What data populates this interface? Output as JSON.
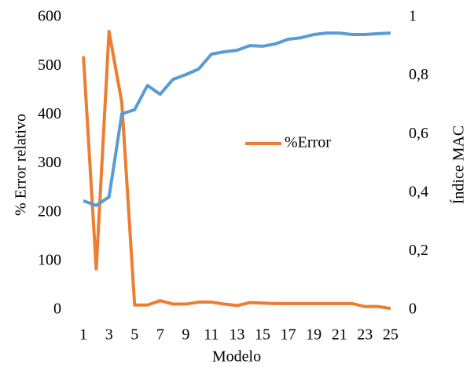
{
  "chart_data": {
    "type": "line",
    "y_label": "% Error relativo",
    "y2_label": "Índice MAC",
    "x_label": "Modelo",
    "categories": [
      "1",
      null,
      "3",
      null,
      "5",
      null,
      "7",
      null,
      "9",
      null,
      "11",
      null,
      "13",
      null,
      "15",
      null,
      "17",
      null,
      "19",
      null,
      "21",
      null,
      "23",
      null,
      "25"
    ],
    "series": [
      {
        "name": "%Error",
        "color": "#ed7d31",
        "values": [
          520,
          84,
          571,
          425,
          10,
          10,
          19,
          12,
          12,
          16,
          16,
          12,
          9,
          15,
          14,
          13,
          13,
          13,
          13,
          13,
          13,
          13,
          7,
          7,
          3
        ]
      },
      {
        "color": "#5b9bd5",
        "axis": "y2",
        "values": [
          0.373,
          0.357,
          0.386,
          0.67,
          0.684,
          0.767,
          0.737,
          0.788,
          0.804,
          0.823,
          0.874,
          0.882,
          0.887,
          0.903,
          0.901,
          0.909,
          0.925,
          0.93,
          0.941,
          0.946,
          0.946,
          0.941,
          0.941,
          0.944,
          0.946
        ]
      }
    ],
    "ylim": [
      0,
      600
    ],
    "yticks": [
      0,
      100,
      200,
      300,
      400,
      500,
      600
    ],
    "y2lim": [
      0,
      1
    ],
    "y2ticks": [
      0,
      {
        "value": 0.2,
        "label": "0,2"
      },
      {
        "value": 0.4,
        "label": "0,4"
      },
      {
        "value": 0.6,
        "label": "0,6"
      },
      {
        "value": 0.8,
        "label": "0,8"
      },
      1
    ],
    "legend": "center"
  }
}
